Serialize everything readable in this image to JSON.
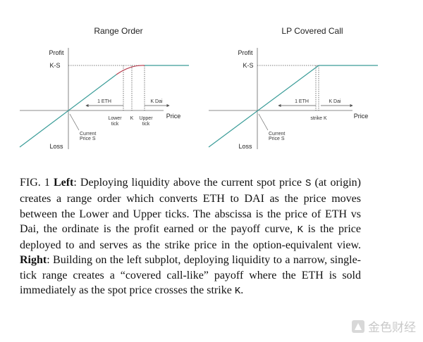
{
  "figure": {
    "panels": [
      {
        "title": "Range Order",
        "y_label": "Profit",
        "level_label": "K-S",
        "bottom_label": "Loss",
        "x_label": "Price",
        "origin_label": [
          "Current",
          "Price S"
        ],
        "left_arrow_label": "1 ETH",
        "right_arrow_label": "K Dai",
        "tick_labels": [
          [
            "Lower",
            "tick"
          ],
          [
            "K"
          ],
          [
            "Upper",
            "tick"
          ]
        ]
      },
      {
        "title": "LP Covered Call",
        "y_label": "Profit",
        "level_label": "K-S",
        "bottom_label": "Loss",
        "x_label": "Price",
        "origin_label": [
          "Current",
          "Price S"
        ],
        "left_arrow_label": "1 ETH",
        "right_arrow_label": "K Dai",
        "tick_labels": [
          [
            "strike K"
          ]
        ]
      }
    ],
    "caption": [
      {
        "text": "FIG. 1 ",
        "style": "normal"
      },
      {
        "text": "Left",
        "style": "bold"
      },
      {
        "text": ": Deploying liquidity above the current spot price ",
        "style": "normal"
      },
      {
        "text": "S",
        "style": "mono"
      },
      {
        "text": " (at origin) creates a range order which converts ETH to DAI as the price moves between the Lower and Upper ticks. The abscissa is the price of ETH vs Dai, the ordinate is the profit earned or the payoff curve, ",
        "style": "normal"
      },
      {
        "text": "K",
        "style": "mono"
      },
      {
        "text": " is the price deployed to and serves as the strike price in the option-equivalent view. ",
        "style": "normal"
      },
      {
        "text": "Right",
        "style": "bold"
      },
      {
        "text": ": Building on the left subplot, deploying liquidity to a narrow, single-tick range creates a “covered call-like” payoff where the ETH is sold immediately as the spot price crosses the strike ",
        "style": "normal"
      },
      {
        "text": "K",
        "style": "mono"
      },
      {
        "text": ".",
        "style": "normal"
      }
    ]
  },
  "watermark": "金色财经"
}
